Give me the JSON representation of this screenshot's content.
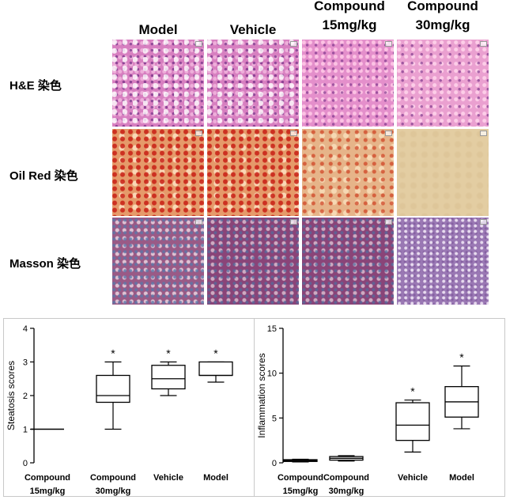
{
  "columns": [
    {
      "line1": "Model",
      "line2": ""
    },
    {
      "line1": "Vehicle",
      "line2": ""
    },
    {
      "line1": "Compound",
      "line2": "15mg/kg"
    },
    {
      "line1": "Compound",
      "line2": "30mg/kg"
    }
  ],
  "rows": [
    {
      "label": "H&E 染色"
    },
    {
      "label": "Oil Red 染色"
    },
    {
      "label": "Masson 染色"
    }
  ],
  "chart_data": [
    {
      "type": "box",
      "title": "",
      "ylabel": "Steatosis scores",
      "xlabel": "",
      "ylim": [
        0,
        4
      ],
      "yticks": [
        0,
        1,
        2,
        3,
        4
      ],
      "categories": [
        {
          "line1": "Compound",
          "line2": "15mg/kg"
        },
        {
          "line1": "Compound",
          "line2": "30mg/kg"
        },
        {
          "line1": "Vehicle",
          "line2": ""
        },
        {
          "line1": "Model",
          "line2": ""
        }
      ],
      "boxes": [
        {
          "min": 1.0,
          "q1": 1.0,
          "median": 1.0,
          "q3": 1.0,
          "max": 1.0,
          "sig": ""
        },
        {
          "min": 1.0,
          "q1": 1.8,
          "median": 2.0,
          "q3": 2.6,
          "max": 3.0,
          "sig": "*"
        },
        {
          "min": 2.0,
          "q1": 2.2,
          "median": 2.5,
          "q3": 2.9,
          "max": 3.0,
          "sig": "*"
        },
        {
          "min": 2.4,
          "q1": 2.6,
          "median": 2.6,
          "q3": 3.0,
          "max": 3.0,
          "sig": "*"
        }
      ]
    },
    {
      "type": "box",
      "title": "",
      "ylabel": "Inflammation scores",
      "xlabel": "",
      "ylim": [
        0,
        15
      ],
      "yticks": [
        0,
        5,
        10,
        15
      ],
      "categories": [
        {
          "line1": "Compound",
          "line2": "15mg/kg"
        },
        {
          "line1": "Compound",
          "line2": "30mg/kg"
        },
        {
          "line1": "Vehicle",
          "line2": ""
        },
        {
          "line1": "Model",
          "line2": ""
        }
      ],
      "boxes": [
        {
          "min": 0.1,
          "q1": 0.15,
          "median": 0.25,
          "q3": 0.35,
          "max": 0.4,
          "sig": ""
        },
        {
          "min": 0.2,
          "q1": 0.3,
          "median": 0.5,
          "q3": 0.7,
          "max": 0.8,
          "sig": ""
        },
        {
          "min": 1.2,
          "q1": 2.5,
          "median": 4.2,
          "q3": 6.7,
          "max": 7.0,
          "sig": "*"
        },
        {
          "min": 3.8,
          "q1": 5.1,
          "median": 6.8,
          "q3": 8.5,
          "max": 10.8,
          "sig": "*"
        }
      ]
    }
  ]
}
